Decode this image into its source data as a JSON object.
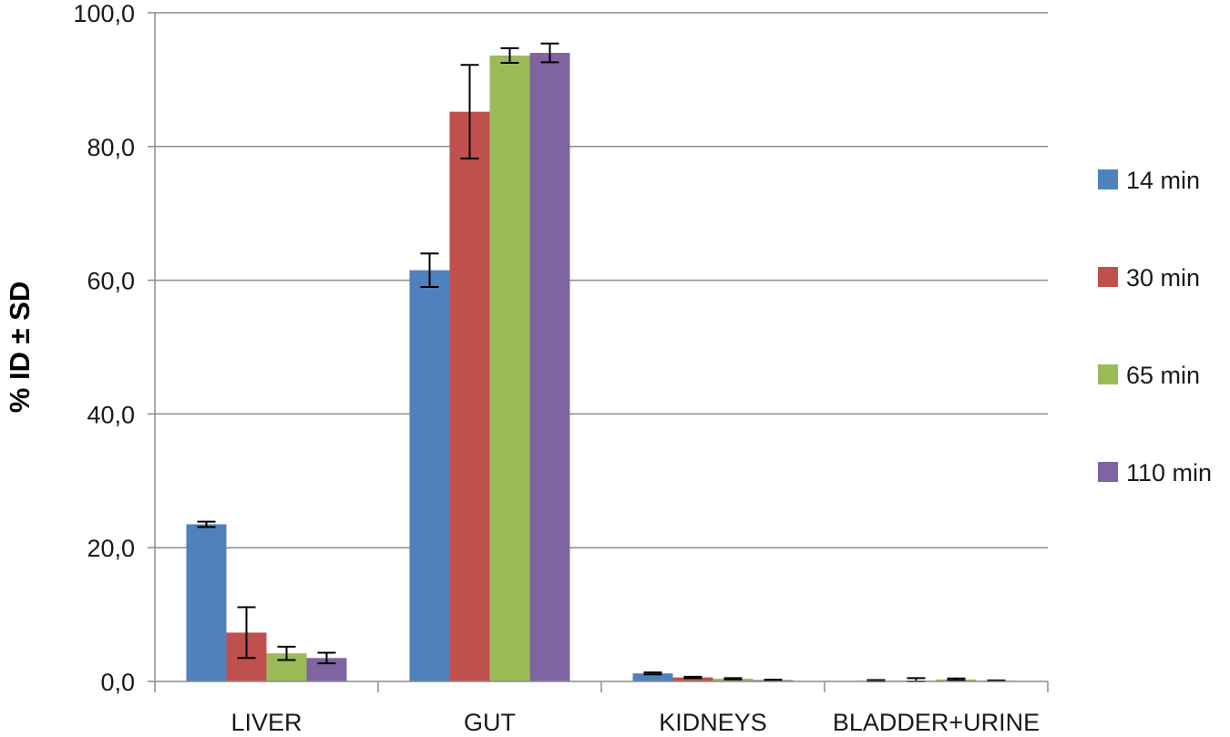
{
  "chart_data": {
    "type": "bar",
    "ylabel": "% ID ± SD",
    "ylim": [
      0,
      100
    ],
    "y_ticks": [
      "0,0",
      "20,0",
      "40,0",
      "60,0",
      "80,0",
      "100,0"
    ],
    "y_tick_values": [
      0,
      20,
      40,
      60,
      80,
      100
    ],
    "grid": true,
    "legend_position": "right",
    "categories": [
      "LIVER",
      "GUT",
      "KIDNEYS",
      "BLADDER+URINE"
    ],
    "series": [
      {
        "name": "14 min",
        "color": "#4f81bd",
        "values": [
          23.5,
          61.5,
          1.2,
          0.1
        ],
        "errors": [
          0.4,
          2.5,
          0.15,
          0.1
        ]
      },
      {
        "name": "30 min",
        "color": "#c0504d",
        "values": [
          7.3,
          85.2,
          0.6,
          0.1
        ],
        "errors": [
          3.8,
          7.0,
          0.1,
          0.4
        ]
      },
      {
        "name": "65 min",
        "color": "#9bbb59",
        "values": [
          4.2,
          93.6,
          0.4,
          0.3
        ],
        "errors": [
          1.0,
          1.1,
          0.1,
          0.15
        ]
      },
      {
        "name": "110 min",
        "color": "#8064a2",
        "values": [
          3.5,
          94.0,
          0.2,
          0.1
        ],
        "errors": [
          0.8,
          1.4,
          0.05,
          0.05
        ]
      }
    ]
  }
}
